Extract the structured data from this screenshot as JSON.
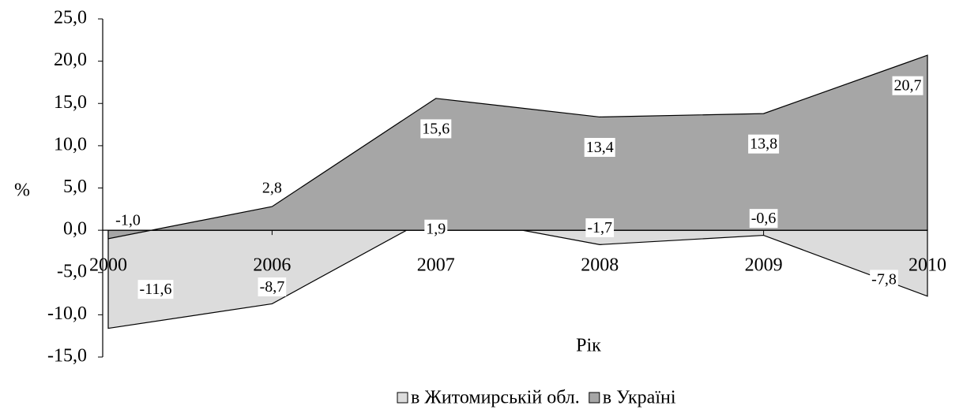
{
  "chart_data": {
    "type": "area",
    "categories": [
      "2000",
      "2006",
      "2007",
      "2008",
      "2009",
      "2010"
    ],
    "series": [
      {
        "name": "в Житомирській обл.",
        "color": "#dcdcdc",
        "values": [
          -11.6,
          -8.7,
          1.9,
          -1.7,
          -0.6,
          -7.8
        ],
        "value_labels": [
          "-11,6",
          "-8,7",
          "1,9",
          "-1,7",
          "-0,6",
          "-7,8"
        ]
      },
      {
        "name": "в Україні",
        "color": "#a6a6a6",
        "values": [
          -1.0,
          2.8,
          15.6,
          13.4,
          13.8,
          20.7
        ],
        "value_labels": [
          "-1,0",
          "2,8",
          "15,6",
          "13,4",
          "13,8",
          "20,7"
        ]
      }
    ],
    "ylim": [
      -15,
      25
    ],
    "yticks": [
      {
        "value": -15,
        "label": "-15,0"
      },
      {
        "value": -10,
        "label": "-10,0"
      },
      {
        "value": -5,
        "label": "-5,0"
      },
      {
        "value": 0,
        "label": "0,0"
      },
      {
        "value": 5,
        "label": "5,0"
      },
      {
        "value": 10,
        "label": "10,0"
      },
      {
        "value": 15,
        "label": "15,0"
      },
      {
        "value": 20,
        "label": "20,0"
      },
      {
        "value": 25,
        "label": "25,0"
      }
    ],
    "y_label": "%",
    "x_label": "Рік",
    "legend": "bottom"
  }
}
